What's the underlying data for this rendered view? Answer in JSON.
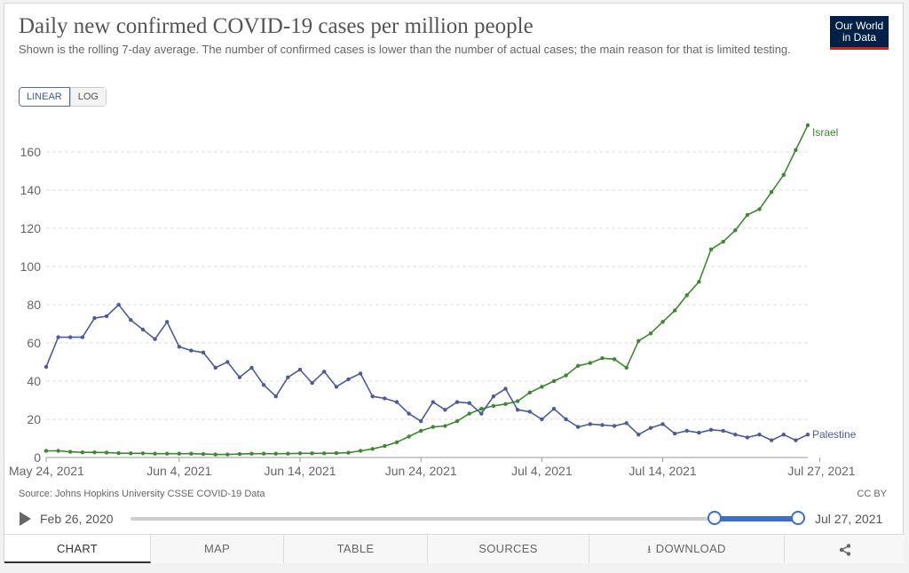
{
  "header": {
    "title": "Daily new confirmed COVID-19 cases per million people",
    "subtitle": "Shown is the rolling 7-day average. The number of confirmed cases is lower than the number of actual cases; the main reason for that is limited testing.",
    "logo_line1": "Our World",
    "logo_line2": "in Data"
  },
  "scale_toggle": {
    "linear": "LINEAR",
    "log": "LOG",
    "selected": "LINEAR"
  },
  "chart_data": {
    "type": "line",
    "title": "Daily new confirmed COVID-19 cases per million people",
    "xlabel": "",
    "ylabel": "",
    "ylim": [
      0,
      175
    ],
    "yticks": [
      0,
      20,
      40,
      60,
      80,
      100,
      120,
      140,
      160
    ],
    "x_start": "2021-05-24",
    "x_end": "2021-07-27",
    "xticks": [
      {
        "day": 0,
        "label": "May 24, 2021"
      },
      {
        "day": 11,
        "label": "Jun 4, 2021"
      },
      {
        "day": 21,
        "label": "Jun 14, 2021"
      },
      {
        "day": 31,
        "label": "Jun 24, 2021"
      },
      {
        "day": 41,
        "label": "Jul 4, 2021"
      },
      {
        "day": 51,
        "label": "Jul 14, 2021"
      },
      {
        "day": 64,
        "label": "Jul 27, 2021"
      }
    ],
    "grid": true,
    "series": [
      {
        "name": "Israel",
        "color": "#3b8a30",
        "values": [
          3.5,
          3.5,
          3,
          2.7,
          2.7,
          2.6,
          2.3,
          2.2,
          2.2,
          2,
          2,
          2,
          2,
          1.8,
          1.6,
          1.6,
          1.8,
          2,
          2,
          2,
          2,
          2.2,
          2.2,
          2.2,
          2.3,
          2.5,
          3.5,
          4.5,
          6,
          8,
          11,
          14,
          16,
          16.5,
          19,
          23,
          25.5,
          27,
          28,
          29.5,
          34,
          37,
          40,
          43,
          48,
          49.5,
          52,
          51.5,
          47,
          61,
          65,
          71,
          77,
          85,
          92,
          109,
          113,
          119,
          127,
          130,
          139,
          148,
          161,
          174
        ]
      },
      {
        "name": "Palestine",
        "color": "#4c5b99",
        "values": [
          47.5,
          63,
          63,
          63,
          73,
          74,
          80,
          72,
          67,
          62,
          71,
          58,
          56,
          55,
          47,
          50,
          42,
          47,
          38,
          32,
          42,
          46,
          39,
          45,
          37,
          41,
          44,
          32,
          31,
          29,
          23,
          19,
          29,
          25,
          29,
          28.5,
          23,
          32,
          36,
          25,
          24,
          20,
          25.5,
          20,
          16,
          17.5,
          17,
          16.5,
          18,
          12,
          15.5,
          17.5,
          12.5,
          14,
          13,
          14.5,
          14,
          12,
          10.5,
          12,
          9,
          12,
          9,
          12
        ]
      }
    ]
  },
  "footer": {
    "source": "Source: Johns Hopkins University CSSE COVID-19 Data",
    "license": "CC BY"
  },
  "timeline": {
    "start_date": "Feb 26, 2020",
    "end_date": "Jul 27, 2021",
    "selection_start_fraction": 0.875,
    "selection_end_fraction": 1.0
  },
  "tabs": {
    "chart": "CHART",
    "map": "MAP",
    "table": "TABLE",
    "sources": "SOURCES",
    "download": "DOWNLOAD",
    "selected": "CHART"
  }
}
